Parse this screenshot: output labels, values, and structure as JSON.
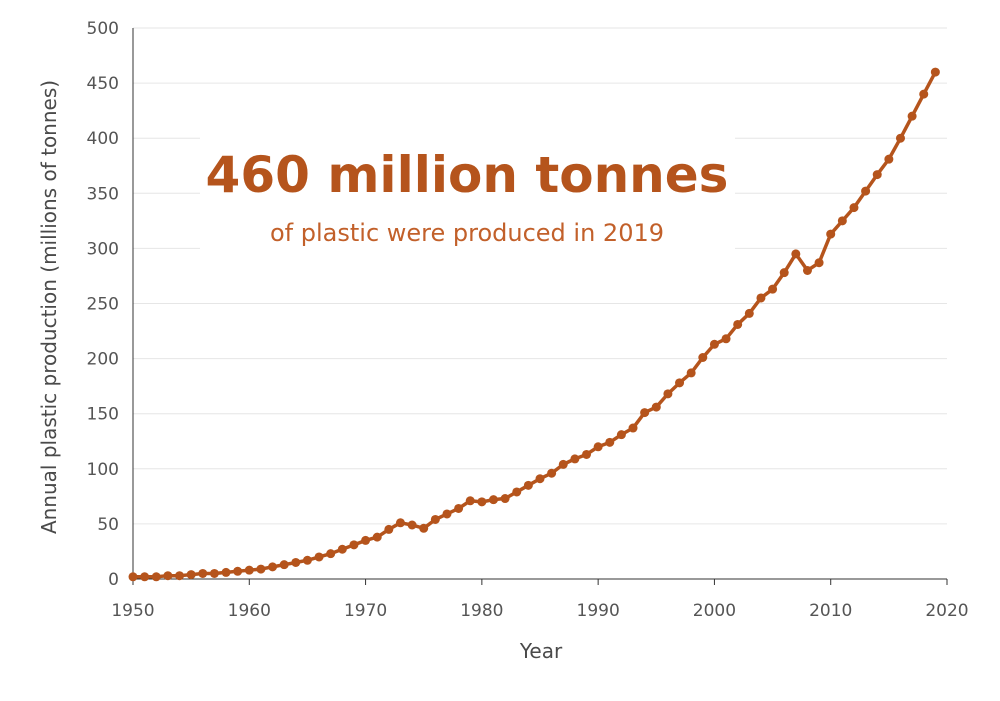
{
  "chart_data": {
    "type": "line",
    "title": "",
    "xlabel": "Year",
    "ylabel": "Annual plastic production (millions of tonnes)",
    "xlim": [
      1950,
      2020
    ],
    "ylim": [
      0,
      500
    ],
    "x_ticks": [
      "1950",
      "1960",
      "1970",
      "1980",
      "1990",
      "2000",
      "2010",
      "2020"
    ],
    "y_ticks": [
      "0",
      "50",
      "100",
      "150",
      "200",
      "250",
      "300",
      "350",
      "400",
      "450",
      "500"
    ],
    "grid": "horizontal",
    "annotation": {
      "headline": "460 million tonnes",
      "subtext": "of plastic were produced in 2019"
    },
    "series": [
      {
        "x": [
          1950,
          1951,
          1952,
          1953,
          1954,
          1955,
          1956,
          1957,
          1958,
          1959,
          1960,
          1961,
          1962,
          1963,
          1964,
          1965,
          1966,
          1967,
          1968,
          1969,
          1970,
          1971,
          1972,
          1973,
          1974,
          1975,
          1976,
          1977,
          1978,
          1979,
          1980,
          1981,
          1982,
          1983,
          1984,
          1985,
          1986,
          1987,
          1988,
          1989,
          1990,
          1991,
          1992,
          1993,
          1994,
          1995,
          1996,
          1997,
          1998,
          1999,
          2000,
          2001,
          2002,
          2003,
          2004,
          2005,
          2006,
          2007,
          2008,
          2009,
          2010,
          2011,
          2012,
          2013,
          2014,
          2015,
          2016,
          2017,
          2018,
          2019
        ],
        "y": [
          2,
          2,
          2,
          3,
          3,
          4,
          5,
          5,
          6,
          7,
          8,
          9,
          11,
          13,
          15,
          17,
          20,
          23,
          27,
          31,
          35,
          38,
          45,
          51,
          49,
          46,
          54,
          59,
          64,
          71,
          70,
          72,
          73,
          79,
          85,
          91,
          96,
          104,
          109,
          113,
          120,
          124,
          131,
          137,
          151,
          156,
          168,
          178,
          187,
          201,
          213,
          218,
          231,
          241,
          255,
          263,
          278,
          295,
          280,
          287,
          313,
          325,
          337,
          352,
          367,
          381,
          400,
          420,
          440,
          460
        ]
      }
    ],
    "colors": {
      "line": "#b5541c",
      "headline": "#b5541c",
      "subtext": "#c2602a",
      "grid": "#e6e6e6",
      "axis": "#333333"
    }
  }
}
